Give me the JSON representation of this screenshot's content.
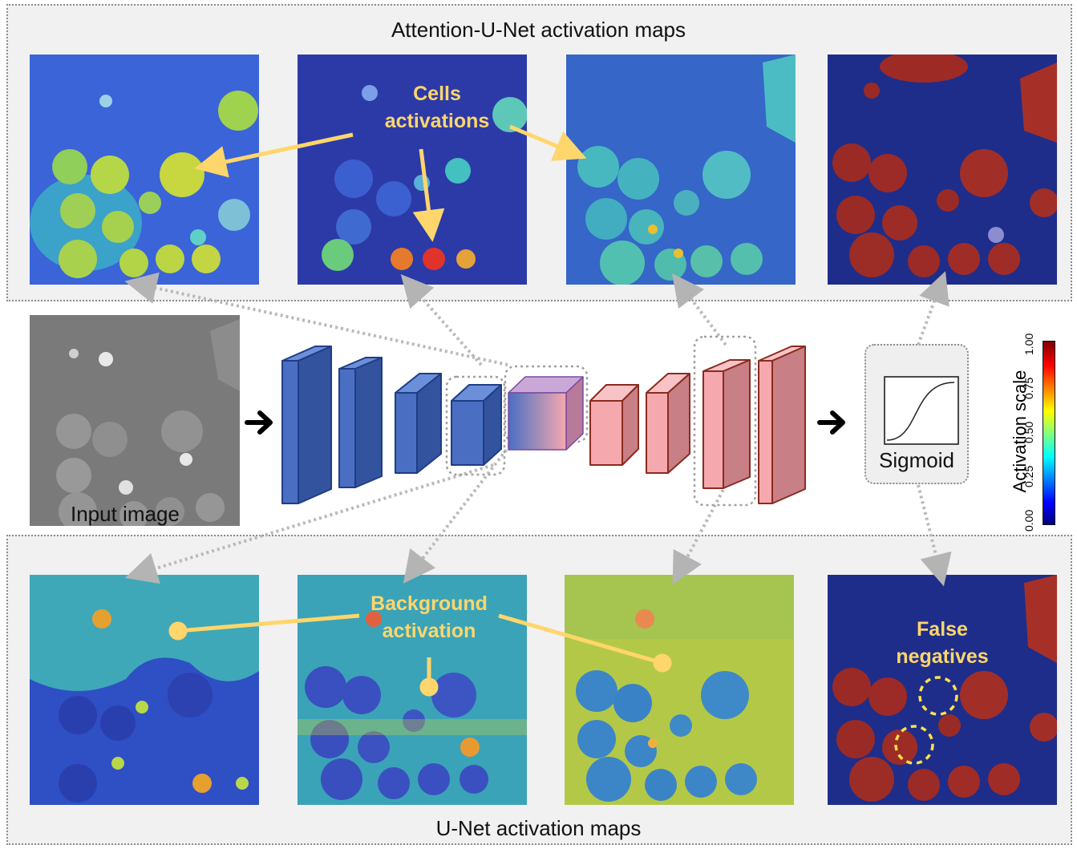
{
  "top_panel": {
    "title": "Attention-U-Net activation maps"
  },
  "bottom_panel": {
    "title": "U-Net activation maps"
  },
  "input": {
    "label": "Input image"
  },
  "sigmoid": {
    "label": "Sigmoid"
  },
  "colorbar": {
    "label": "Activation scale",
    "ticks": [
      "0.00",
      "0.25",
      "0.50",
      "0.75",
      "1.00"
    ]
  },
  "annotations": {
    "cells_line1": "Cells",
    "cells_line2": "activations",
    "background_line1": "Background",
    "background_line2": "activation",
    "fn_line1": "False",
    "fn_line2": "negatives"
  },
  "colors": {
    "encoder": "#4a6fc2",
    "decoder": "#f5a9ae",
    "annotation": "#ffd66b",
    "colormap": [
      "#00007f",
      "#0000ff",
      "#00ffff",
      "#ffff00",
      "#ff0000",
      "#7f0000"
    ]
  }
}
